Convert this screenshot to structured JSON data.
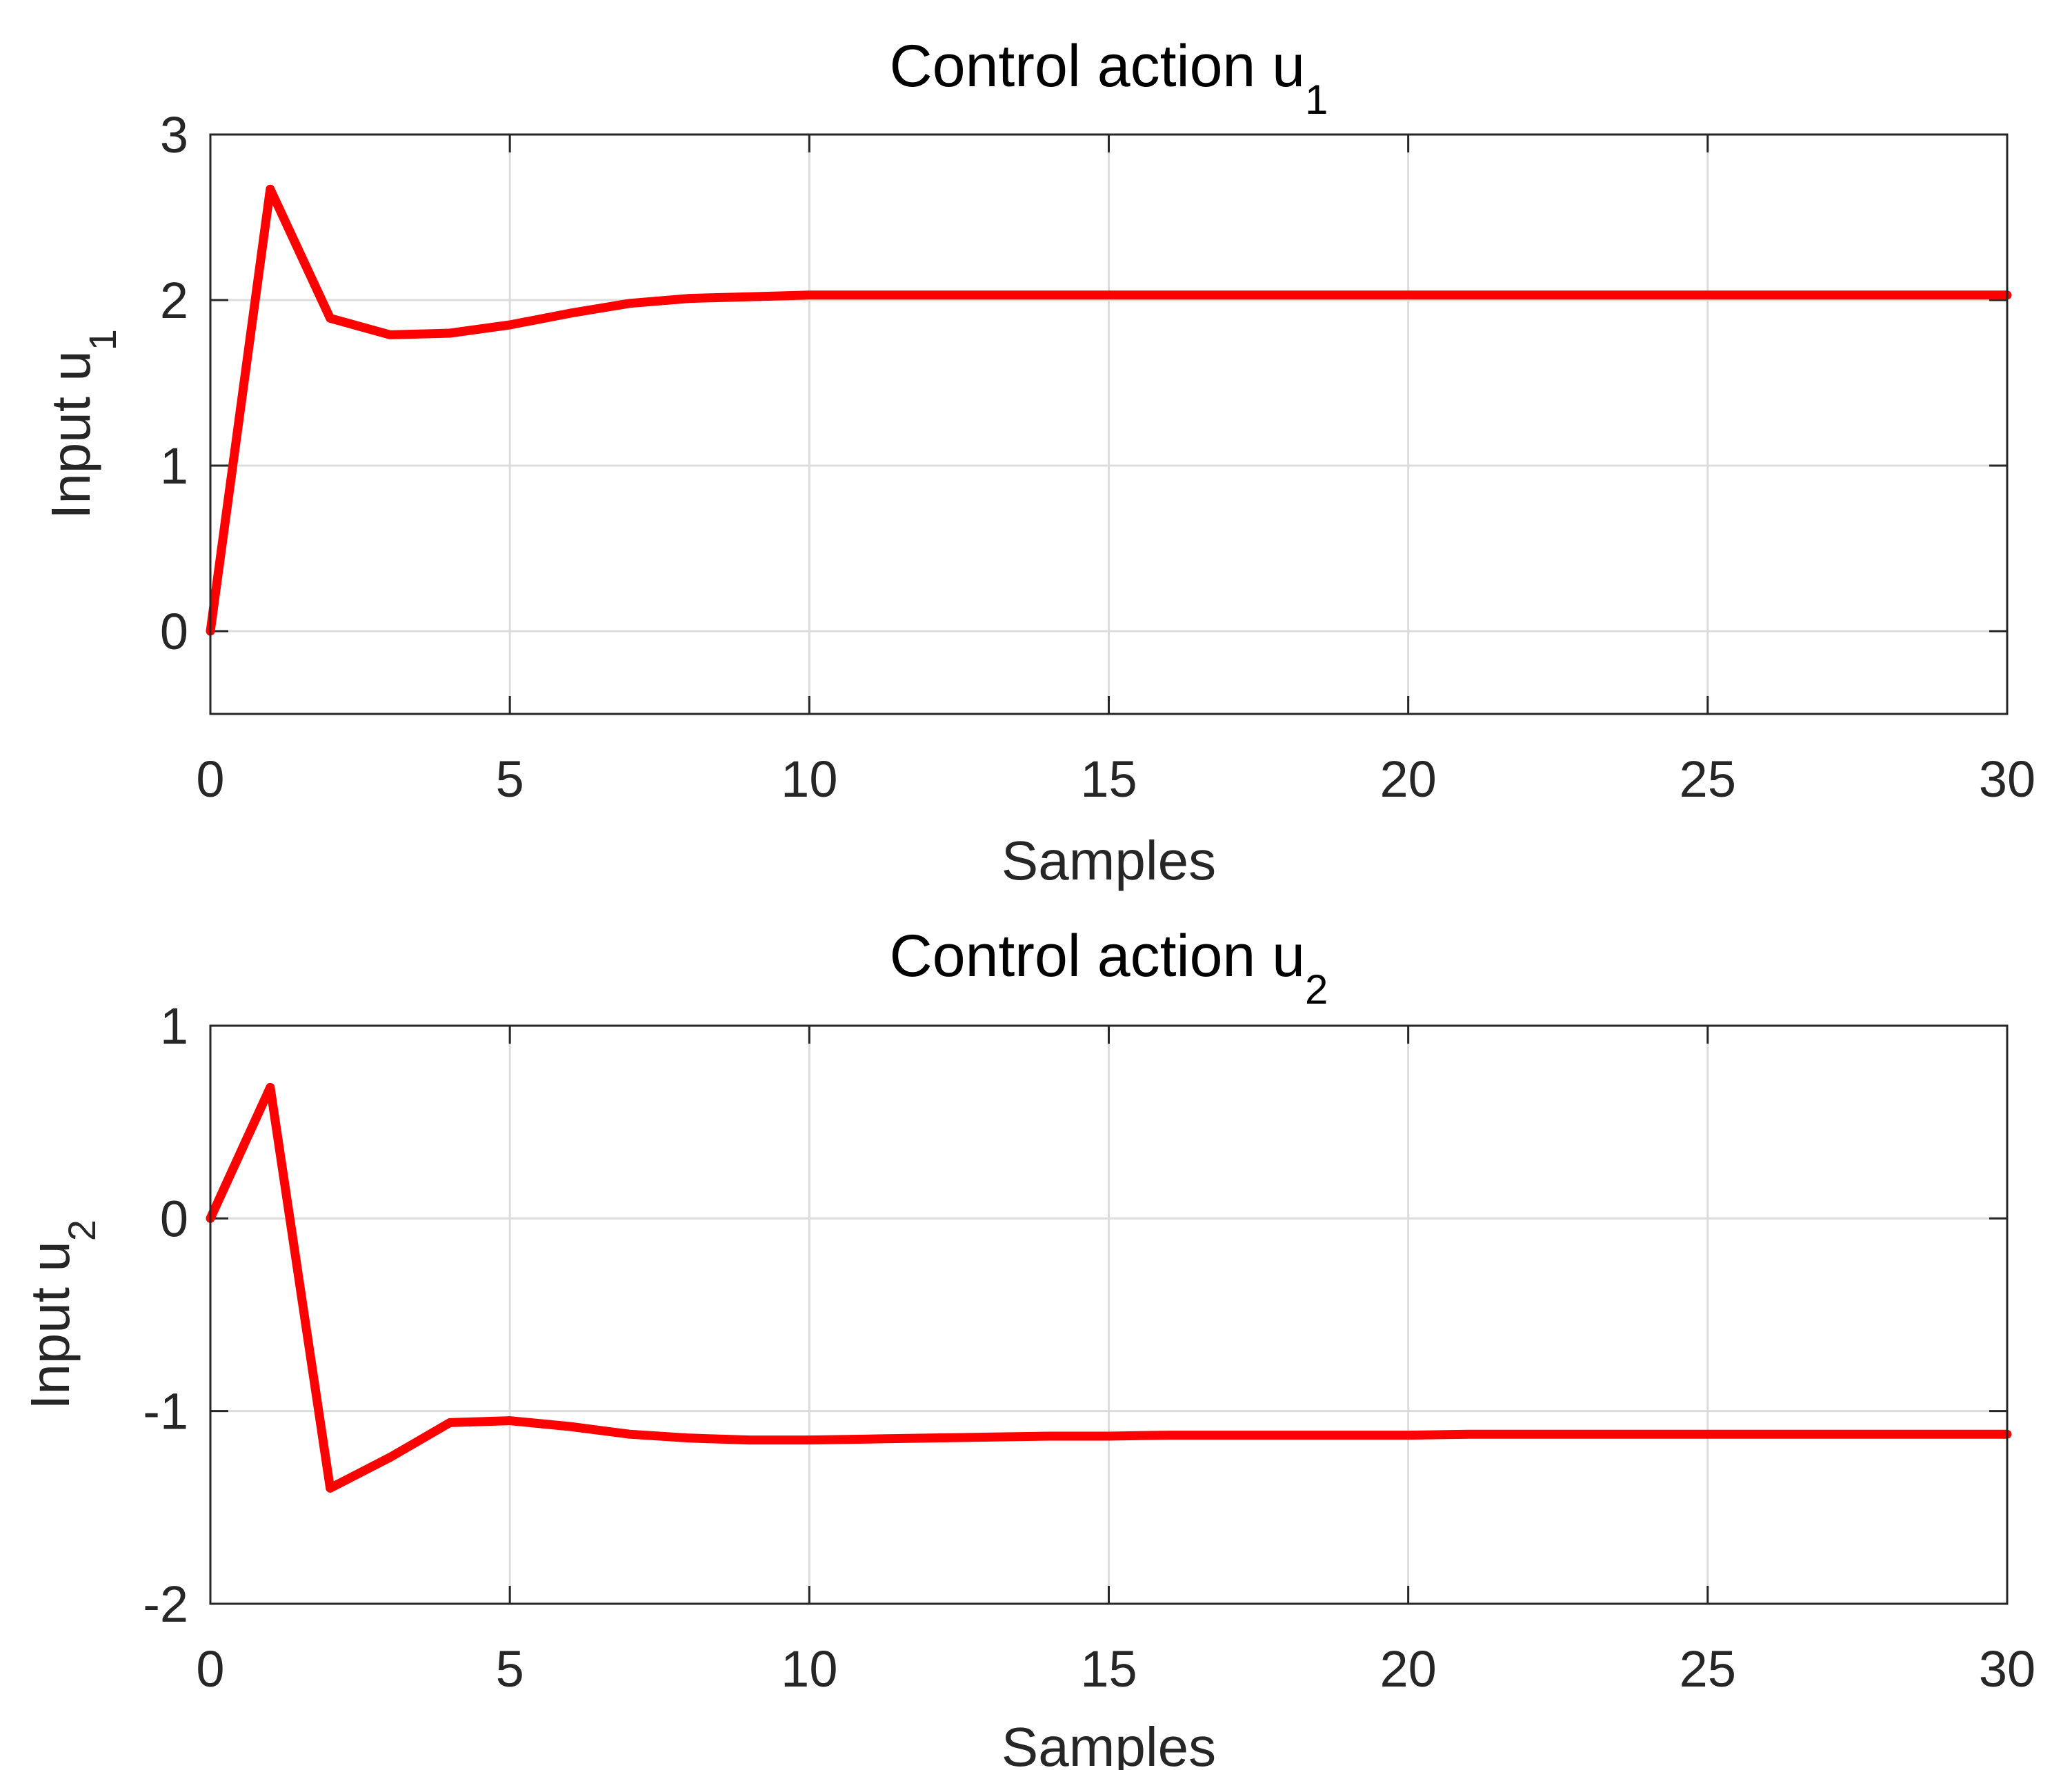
{
  "chart_data": [
    {
      "type": "line",
      "title": "Control action u",
      "title_subscript": "1",
      "xlabel": "Samples",
      "ylabel": "Input u",
      "ylabel_subscript": "1",
      "xlim": [
        0,
        30
      ],
      "ylim": [
        -0.5,
        3
      ],
      "xticks": [
        0,
        5,
        10,
        15,
        20,
        25,
        30
      ],
      "yticks": [
        0,
        1,
        2,
        3
      ],
      "ytick_labels": [
        "0",
        "1",
        "2",
        "3"
      ],
      "grid": true,
      "color": "#ff0000",
      "series": [
        {
          "x": [
            0,
            1,
            2,
            3,
            4,
            5,
            6,
            7,
            8,
            9,
            10,
            11,
            12,
            13,
            14,
            15,
            16,
            17,
            18,
            19,
            20,
            21,
            22,
            23,
            24,
            25,
            26,
            27,
            28,
            29,
            30
          ],
          "y": [
            0,
            2.67,
            1.89,
            1.79,
            1.8,
            1.85,
            1.92,
            1.98,
            2.01,
            2.02,
            2.03,
            2.03,
            2.03,
            2.03,
            2.03,
            2.03,
            2.03,
            2.03,
            2.03,
            2.03,
            2.03,
            2.03,
            2.03,
            2.03,
            2.03,
            2.03,
            2.03,
            2.03,
            2.03,
            2.03,
            2.03
          ]
        }
      ]
    },
    {
      "type": "line",
      "title": "Control action u",
      "title_subscript": "2",
      "xlabel": "Samples",
      "ylabel": "Input u",
      "ylabel_subscript": "2",
      "xlim": [
        0,
        30
      ],
      "ylim": [
        -2,
        1
      ],
      "xticks": [
        0,
        5,
        10,
        15,
        20,
        25,
        30
      ],
      "yticks": [
        -2,
        -1,
        0,
        1
      ],
      "ytick_labels": [
        "-2",
        "-1",
        "0",
        "1"
      ],
      "grid": true,
      "color": "#ff0000",
      "series": [
        {
          "x": [
            0,
            1,
            2,
            3,
            4,
            5,
            6,
            7,
            8,
            9,
            10,
            11,
            12,
            13,
            14,
            15,
            16,
            17,
            18,
            19,
            20,
            21,
            22,
            23,
            24,
            25,
            26,
            27,
            28,
            29,
            30
          ],
          "y": [
            0,
            0.68,
            -1.4,
            -1.24,
            -1.06,
            -1.05,
            -1.08,
            -1.12,
            -1.14,
            -1.15,
            -1.15,
            -1.145,
            -1.14,
            -1.135,
            -1.13,
            -1.13,
            -1.125,
            -1.125,
            -1.125,
            -1.125,
            -1.125,
            -1.12,
            -1.12,
            -1.12,
            -1.12,
            -1.12,
            -1.12,
            -1.12,
            -1.12,
            -1.12,
            -1.12
          ]
        }
      ]
    }
  ]
}
